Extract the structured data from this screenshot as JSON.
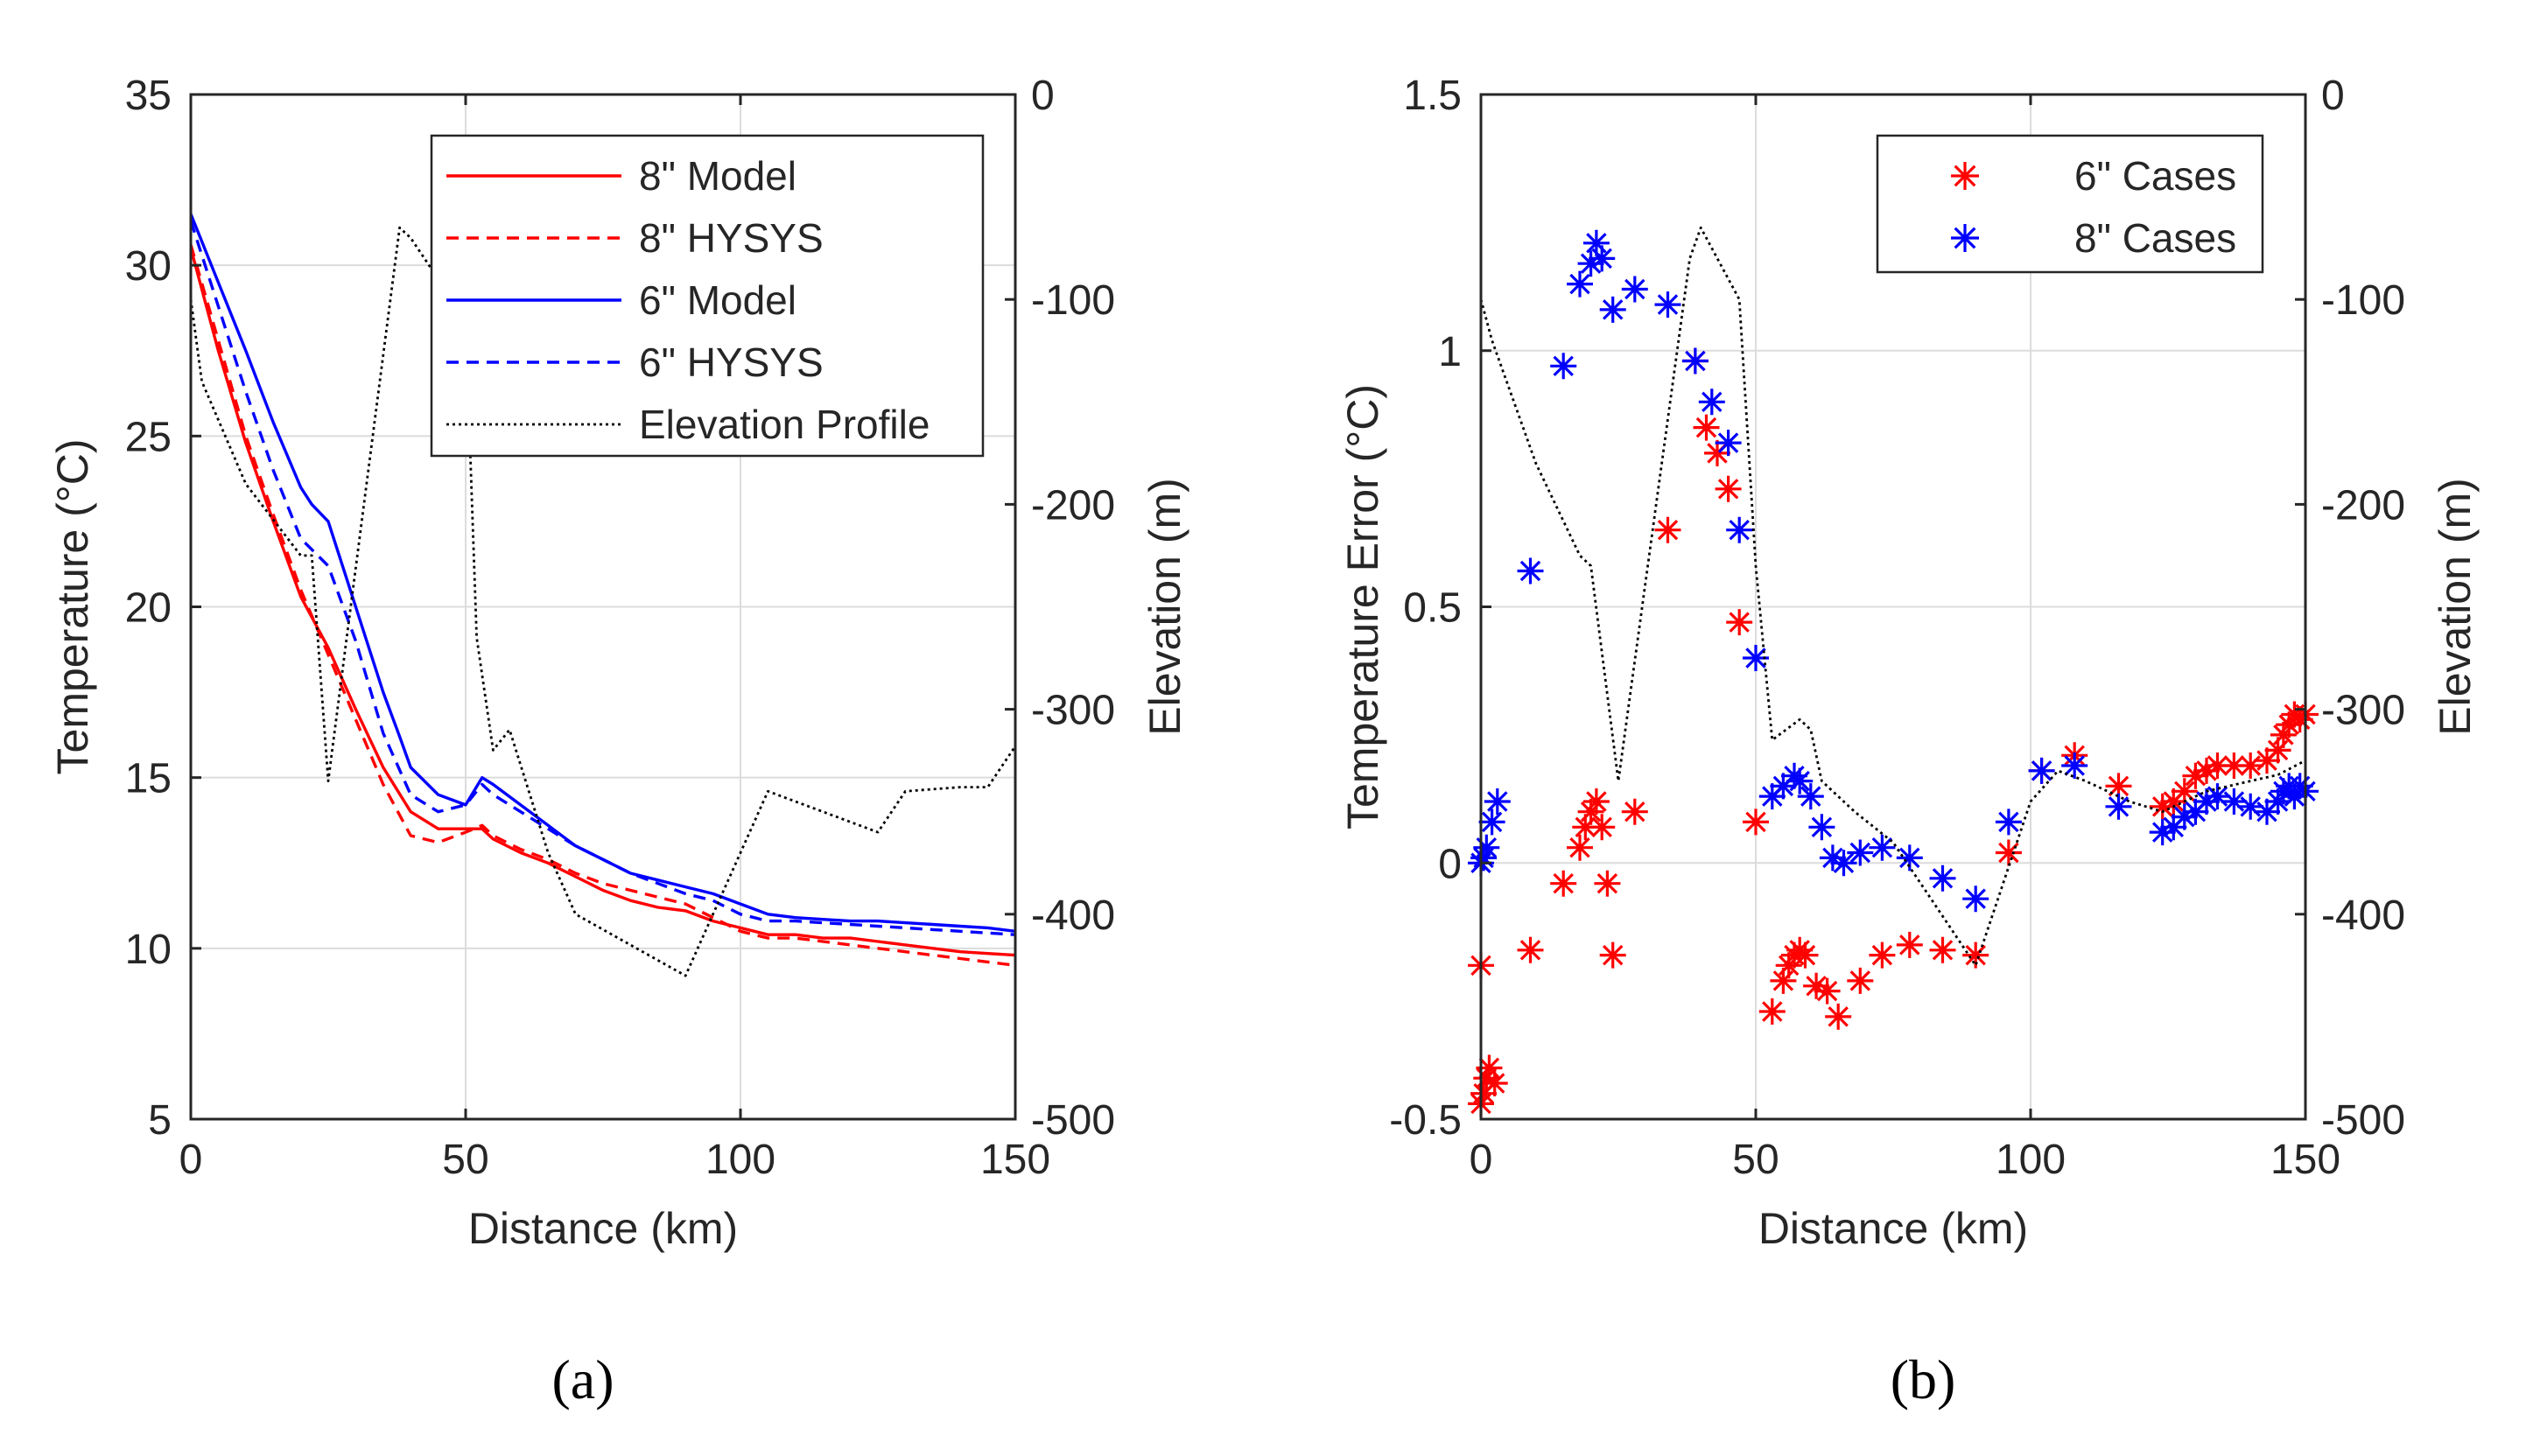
{
  "chart_data": [
    {
      "type": "line",
      "panel_label": "(a)",
      "title": "",
      "xlabel": "Distance (km)",
      "ylabel": "Temperature (°C)",
      "y2label": "Elevation (m)",
      "xlim": [
        0,
        150
      ],
      "ylim": [
        5,
        35
      ],
      "y2lim": [
        -500,
        0
      ],
      "xticks": [
        "0",
        "50",
        "100",
        "150"
      ],
      "yticks": [
        "5",
        "10",
        "15",
        "20",
        "25",
        "30",
        "35"
      ],
      "y2ticks": [
        "-500",
        "-400",
        "-300",
        "-200",
        "-100",
        "0"
      ],
      "grid": true,
      "legend_position": "top-right",
      "series": [
        {
          "name": "8\" Model",
          "axis": "left",
          "color": "#ff0000",
          "style": "solid",
          "x": [
            0,
            5,
            10,
            15,
            20,
            25,
            30,
            35,
            40,
            45,
            50,
            53,
            55,
            60,
            65,
            70,
            75,
            80,
            85,
            90,
            95,
            100,
            105,
            110,
            115,
            120,
            125,
            130,
            135,
            140,
            145,
            150
          ],
          "y": [
            30.5,
            27.5,
            24.8,
            22.5,
            20.3,
            18.8,
            17.0,
            15.3,
            14.0,
            13.5,
            13.5,
            13.5,
            13.2,
            12.8,
            12.5,
            12.1,
            11.7,
            11.4,
            11.2,
            11.1,
            10.8,
            10.6,
            10.4,
            10.4,
            10.3,
            10.3,
            10.2,
            10.1,
            10.0,
            9.9,
            9.85,
            9.8
          ]
        },
        {
          "name": "8\" HYSYS",
          "axis": "left",
          "color": "#ff0000",
          "style": "dashed",
          "x": [
            0,
            5,
            10,
            15,
            20,
            25,
            30,
            35,
            40,
            45,
            50,
            53,
            55,
            60,
            65,
            70,
            75,
            80,
            85,
            90,
            95,
            100,
            105,
            110,
            115,
            120,
            125,
            130,
            135,
            140,
            145,
            150
          ],
          "y": [
            30.6,
            27.8,
            25.0,
            22.7,
            20.5,
            18.6,
            16.7,
            14.8,
            13.3,
            13.1,
            13.4,
            13.6,
            13.3,
            12.9,
            12.6,
            12.2,
            11.9,
            11.7,
            11.5,
            11.3,
            10.9,
            10.5,
            10.3,
            10.3,
            10.2,
            10.1,
            10.0,
            9.9,
            9.8,
            9.7,
            9.6,
            9.5
          ]
        },
        {
          "name": "6\" Model",
          "axis": "left",
          "color": "#0000ff",
          "style": "solid",
          "x": [
            0,
            5,
            10,
            15,
            20,
            22,
            25,
            30,
            35,
            38,
            40,
            45,
            50,
            53,
            55,
            60,
            65,
            70,
            75,
            80,
            85,
            90,
            95,
            100,
            105,
            110,
            115,
            120,
            125,
            130,
            135,
            140,
            145,
            150
          ],
          "y": [
            31.5,
            29.5,
            27.5,
            25.4,
            23.5,
            23.0,
            22.5,
            20.0,
            17.5,
            16.2,
            15.3,
            14.5,
            14.2,
            15.0,
            14.8,
            14.2,
            13.6,
            13.0,
            12.6,
            12.2,
            12.0,
            11.8,
            11.6,
            11.3,
            11.0,
            10.9,
            10.85,
            10.8,
            10.8,
            10.75,
            10.7,
            10.65,
            10.6,
            10.5
          ]
        },
        {
          "name": "6\" HYSYS",
          "axis": "left",
          "color": "#0000ff",
          "style": "dashed",
          "x": [
            0,
            5,
            10,
            15,
            20,
            25,
            30,
            35,
            40,
            45,
            50,
            53,
            55,
            60,
            65,
            70,
            75,
            80,
            85,
            90,
            95,
            100,
            105,
            110,
            115,
            120,
            125,
            130,
            135,
            140,
            145,
            150
          ],
          "y": [
            31.3,
            28.8,
            26.3,
            24.0,
            22.0,
            21.2,
            19.0,
            16.3,
            14.5,
            14.0,
            14.2,
            14.8,
            14.5,
            14.0,
            13.5,
            13.0,
            12.6,
            12.2,
            11.9,
            11.6,
            11.4,
            11.0,
            10.8,
            10.8,
            10.75,
            10.7,
            10.65,
            10.6,
            10.55,
            10.5,
            10.45,
            10.4
          ]
        },
        {
          "name": "Elevation Profile",
          "axis": "right",
          "color": "#000000",
          "style": "dotted",
          "x": [
            0,
            2,
            10,
            20,
            22,
            25,
            38,
            40,
            50,
            52,
            55,
            58,
            65,
            70,
            90,
            105,
            115,
            125,
            130,
            140,
            145,
            150
          ],
          "y": [
            -100,
            -140,
            -190,
            -225,
            -225,
            -335,
            -65,
            -70,
            -110,
            -265,
            -320,
            -310,
            -370,
            -400,
            -430,
            -340,
            -350,
            -360,
            -340,
            -338,
            -338,
            -318
          ]
        }
      ]
    },
    {
      "type": "scatter",
      "panel_label": "(b)",
      "title": "",
      "xlabel": "Distance (km)",
      "ylabel": "Temperature Error (°C)",
      "y2label": "Elevation (m)",
      "xlim": [
        0,
        150
      ],
      "ylim": [
        -0.5,
        1.5
      ],
      "y2lim": [
        -500,
        0
      ],
      "xticks": [
        "0",
        "50",
        "100",
        "150"
      ],
      "yticks": [
        "-0.5",
        "0",
        "0.5",
        "1",
        "1.5"
      ],
      "y2ticks": [
        "-500",
        "-400",
        "-300",
        "-200",
        "-100",
        "0"
      ],
      "grid": true,
      "legend_position": "top-right",
      "series": [
        {
          "name": "6\" Cases",
          "axis": "left",
          "color": "#ff0000",
          "marker": "asterisk",
          "x": [
            0,
            0.5,
            1,
            1.5,
            2.5,
            0,
            9,
            15,
            18,
            19,
            20,
            21,
            22,
            23,
            24,
            28,
            34,
            39,
            41,
            43,
            45,
            47,
            50,
            53,
            55,
            56,
            57,
            58,
            59,
            61,
            63,
            65,
            69,
            73,
            78,
            84,
            90,
            96,
            102,
            108,
            116,
            124,
            126,
            128,
            130,
            132,
            134,
            137,
            140,
            143,
            145,
            146,
            147,
            148,
            149,
            150
          ],
          "y": [
            -0.47,
            -0.45,
            -0.42,
            -0.4,
            -0.43,
            -0.2,
            -0.17,
            -0.04,
            0.03,
            0.07,
            0.1,
            0.12,
            0.07,
            -0.04,
            -0.18,
            0.1,
            0.65,
            0.98,
            0.85,
            0.8,
            0.73,
            0.47,
            0.08,
            -0.29,
            -0.23,
            -0.2,
            -0.18,
            -0.17,
            -0.18,
            -0.24,
            -0.25,
            -0.3,
            -0.23,
            -0.18,
            -0.16,
            -0.17,
            -0.18,
            0.02,
            0.18,
            0.21,
            0.15,
            0.11,
            0.12,
            0.14,
            0.17,
            0.18,
            0.19,
            0.19,
            0.19,
            0.2,
            0.22,
            0.25,
            0.27,
            0.29,
            0.28,
            0.29
          ]
        },
        {
          "name": "8\" Cases",
          "axis": "left",
          "color": "#0000ff",
          "marker": "asterisk",
          "x": [
            0,
            0.5,
            1,
            2,
            3,
            9,
            15,
            18,
            20,
            21,
            22,
            24,
            28,
            34,
            39,
            42,
            45,
            47,
            50,
            53,
            55,
            57,
            58,
            60,
            62,
            64,
            66,
            69,
            73,
            78,
            84,
            90,
            96,
            102,
            108,
            116,
            124,
            126,
            128,
            130,
            132,
            134,
            137,
            140,
            143,
            145,
            146,
            147,
            148,
            149,
            150
          ],
          "y": [
            0.0,
            0.01,
            0.03,
            0.08,
            0.12,
            0.57,
            0.97,
            1.13,
            1.17,
            1.21,
            1.18,
            1.08,
            1.12,
            1.09,
            0.98,
            0.9,
            0.82,
            0.65,
            0.4,
            0.13,
            0.15,
            0.17,
            0.16,
            0.13,
            0.07,
            0.01,
            0.0,
            0.02,
            0.03,
            0.01,
            -0.03,
            -0.07,
            0.08,
            0.18,
            0.19,
            0.11,
            0.06,
            0.07,
            0.09,
            0.1,
            0.12,
            0.13,
            0.12,
            0.11,
            0.1,
            0.12,
            0.14,
            0.15,
            0.13,
            0.15,
            0.14
          ]
        },
        {
          "name": "Elevation Profile",
          "axis": "right",
          "color": "#000000",
          "style": "dotted",
          "x": [
            0,
            2,
            10,
            18,
            20,
            25,
            38,
            40,
            47,
            50,
            53,
            58,
            60,
            62,
            68,
            75,
            90,
            100,
            105,
            110,
            118,
            124,
            128,
            132,
            140,
            145,
            150
          ],
          "y": [
            -100,
            -120,
            -180,
            -225,
            -230,
            -335,
            -80,
            -65,
            -100,
            -230,
            -315,
            -305,
            -310,
            -335,
            -350,
            -365,
            -425,
            -345,
            -330,
            -335,
            -345,
            -350,
            -345,
            -340,
            -335,
            -332,
            -325
          ]
        }
      ]
    }
  ]
}
